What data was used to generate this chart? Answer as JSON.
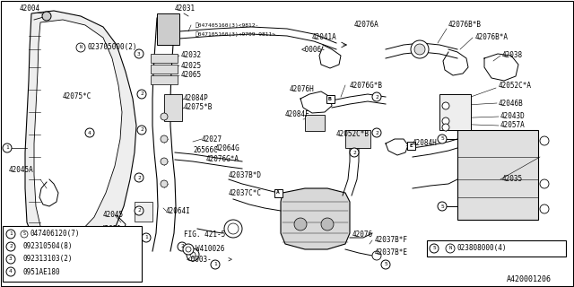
{
  "background_color": "#ffffff",
  "line_color": "#000000",
  "text_color": "#000000",
  "diagram_id": "A420001206",
  "font_size": 5.5,
  "legend_items": [
    {
      "num": "1",
      "prefix": "S",
      "part": "047406120(7)"
    },
    {
      "num": "2",
      "prefix": "",
      "part": "092310504(8)"
    },
    {
      "num": "3",
      "prefix": "",
      "part": "092313103(2)"
    },
    {
      "num": "4",
      "prefix": "",
      "part": "0951AE180"
    }
  ],
  "legend5_part": "023808000(4)",
  "top_n_part": "023705000(2)",
  "bolt_s1": "047405160(3)<9812-",
  "bolt_s2": "047105160(3)<9709-9811>",
  "fig_ref": "FIG. 421-5",
  "washer_label": "W410026",
  "date_range": "<0003-    >"
}
